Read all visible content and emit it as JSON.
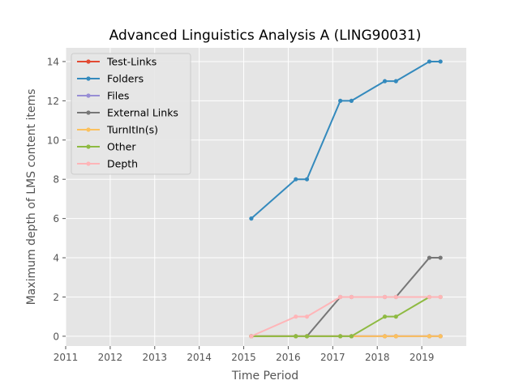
{
  "chart_data": {
    "type": "line",
    "title": "Advanced Linguistics Analysis A (LING90031)",
    "xlabel": "Time Period",
    "ylabel": "Maximum depth of LMS content items",
    "xlim": [
      2011,
      2020
    ],
    "ylim": [
      -0.5,
      14.7
    ],
    "xticks": [
      2011,
      2012,
      2013,
      2014,
      2015,
      2016,
      2017,
      2018,
      2019
    ],
    "yticks": [
      0,
      2,
      4,
      6,
      8,
      10,
      12,
      14
    ],
    "grid": true,
    "legend_position": "top-left",
    "series": [
      {
        "name": "Test-Links",
        "color": "#e24a33",
        "x": [
          2015.17,
          2016.17,
          2016.42,
          2017.17,
          2017.42,
          2018.17,
          2018.42,
          2019.17,
          2019.42
        ],
        "y": [
          0,
          0,
          0,
          0,
          0,
          0,
          0,
          0,
          0
        ]
      },
      {
        "name": "Folders",
        "color": "#348abd",
        "x": [
          2015.17,
          2016.17,
          2016.42,
          2017.17,
          2017.42,
          2018.17,
          2018.42,
          2019.17,
          2019.42
        ],
        "y": [
          6,
          8,
          8,
          12,
          12,
          13,
          13,
          14,
          14
        ]
      },
      {
        "name": "Files",
        "color": "#988ed5",
        "x": [
          2015.17,
          2016.17,
          2016.42,
          2017.17,
          2017.42,
          2018.17,
          2018.42,
          2019.17,
          2019.42
        ],
        "y": [
          0,
          0,
          0,
          0,
          0,
          0,
          0,
          0,
          0
        ]
      },
      {
        "name": "External Links",
        "color": "#777777",
        "x": [
          2015.17,
          2016.17,
          2016.42,
          2017.17,
          2017.42,
          2018.17,
          2018.42,
          2019.17,
          2019.42
        ],
        "y": [
          0,
          0,
          0,
          2,
          2,
          2,
          2,
          4,
          4
        ]
      },
      {
        "name": "TurnItIn(s)",
        "color": "#fbc15e",
        "x": [
          2015.17,
          2016.17,
          2016.42,
          2017.17,
          2017.42,
          2018.17,
          2018.42,
          2019.17,
          2019.42
        ],
        "y": [
          0,
          0,
          0,
          0,
          0,
          0,
          0,
          0,
          0
        ]
      },
      {
        "name": "Other",
        "color": "#8eba42",
        "x": [
          2015.17,
          2016.17,
          2016.42,
          2017.17,
          2017.42,
          2018.17,
          2018.42,
          2019.17,
          2019.42
        ],
        "y": [
          0,
          0,
          0,
          0,
          0,
          1,
          1,
          2,
          2
        ]
      },
      {
        "name": "Depth",
        "color": "#ffb5b8",
        "x": [
          2015.17,
          2016.17,
          2016.42,
          2017.17,
          2017.42,
          2018.17,
          2018.42,
          2019.17,
          2019.42
        ],
        "y": [
          0,
          1,
          1,
          2,
          2,
          2,
          2,
          2,
          2
        ]
      }
    ]
  },
  "colors": {
    "plot_background": "#e5e5e5",
    "grid": "#ffffff",
    "text": "#555555"
  }
}
